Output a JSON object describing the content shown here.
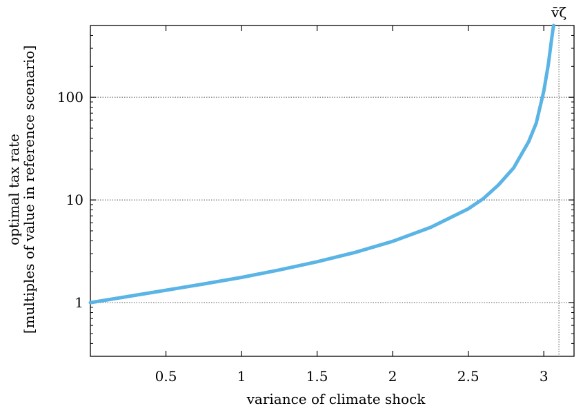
{
  "chart_data": {
    "type": "line",
    "title": "",
    "xlabel": "variance of climate shock",
    "ylabel_lines": [
      "optimal tax rate",
      "[multiples of value in reference scenario]"
    ],
    "xlim": [
      0.0,
      3.2
    ],
    "ylim": [
      0.3,
      500
    ],
    "yscale": "log",
    "x_ticks": [
      0.5,
      1,
      1.5,
      2,
      2.5,
      3
    ],
    "x_tick_labels": [
      "0.5",
      "1",
      "1.5",
      "2",
      "2.5",
      "3"
    ],
    "y_ticks": [
      1,
      10,
      100
    ],
    "y_tick_labels": [
      "1",
      "10",
      "100"
    ],
    "grid": "horizontal dotted at y ticks",
    "vline": {
      "x": 3.1,
      "label": "v̄ζ",
      "style": "dotted"
    },
    "series": [
      {
        "color": "#5ab4e5",
        "x": [
          0.0,
          0.25,
          0.5,
          0.75,
          1.0,
          1.25,
          1.5,
          1.75,
          2.0,
          2.25,
          2.5,
          2.6,
          2.7,
          2.8,
          2.9,
          2.95,
          3.0,
          3.03,
          3.05,
          3.06,
          3.065
        ],
        "y": [
          1.0,
          1.15,
          1.32,
          1.52,
          1.76,
          2.08,
          2.5,
          3.08,
          3.95,
          5.4,
          8.2,
          10.3,
          14.0,
          20.5,
          37,
          56,
          115,
          210,
          350,
          450,
          500
        ]
      }
    ]
  }
}
